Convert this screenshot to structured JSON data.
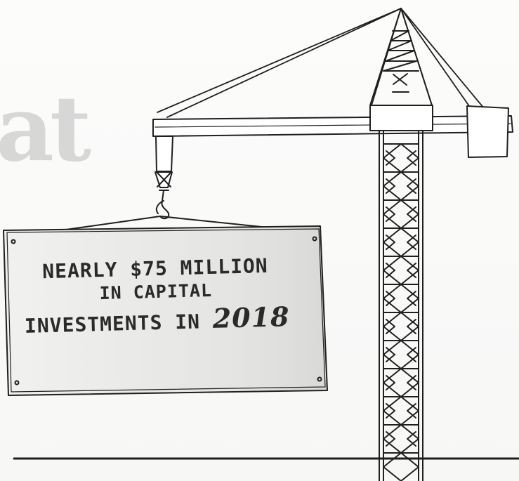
{
  "headline_fragment": "at",
  "sign": {
    "line1": "NEARLY $75 MILLION",
    "line2": "IN CAPITAL",
    "line3_prefix": "INVESTMENTS IN",
    "line3_year": "2018"
  },
  "colors": {
    "sketch": "#1f1f1f",
    "sign_fill": "#e9e9e7",
    "sign_shadow": "#d6d6d4",
    "headline": "#a8a8a8"
  }
}
